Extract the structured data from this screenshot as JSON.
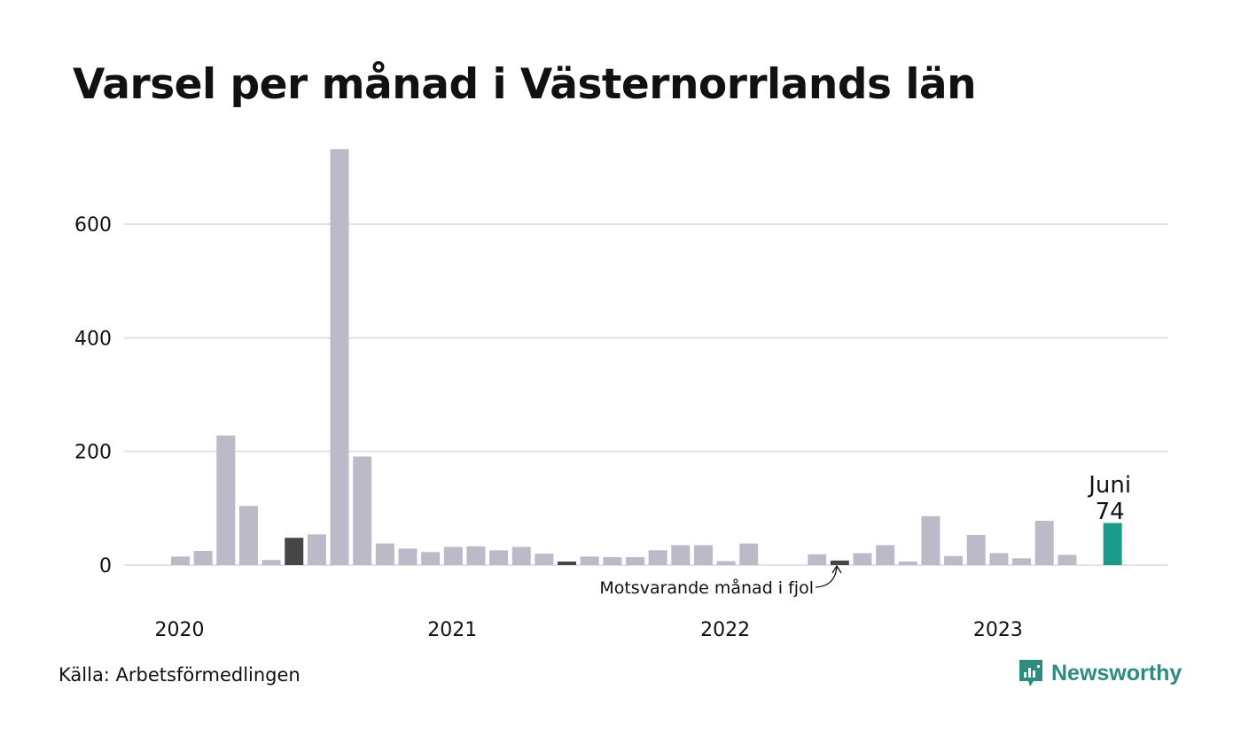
{
  "title": "Varsel per månad i Västernorrlands län",
  "source": "Källa: Arbetsförmedlingen",
  "brand": {
    "name": "Newsworthy",
    "icon": "newsworthy-logo-icon",
    "color": "#2e8b80"
  },
  "colors": {
    "bar": "#bcbac9",
    "same_month_last_year": "#464646",
    "current": "#1a9a8a",
    "grid": "#e2e2e6"
  },
  "annotations": {
    "current_month": "Juni",
    "current_value": "74",
    "last_year": "Motsvarande månad i fjol"
  },
  "chart_data": {
    "type": "bar",
    "title": "Varsel per månad i Västernorrlands län",
    "xlabel": "",
    "ylabel": "",
    "ylim": [
      0,
      740
    ],
    "yticks": [
      0,
      200,
      400,
      600
    ],
    "grid": true,
    "year_labels": [
      "2020",
      "2021",
      "2022",
      "2023"
    ],
    "categories": [
      "2020-01",
      "2020-02",
      "2020-03",
      "2020-04",
      "2020-05",
      "2020-06",
      "2020-07",
      "2020-08",
      "2020-09",
      "2020-10",
      "2020-11",
      "2020-12",
      "2021-01",
      "2021-02",
      "2021-03",
      "2021-04",
      "2021-05",
      "2021-06",
      "2021-07",
      "2021-08",
      "2021-09",
      "2021-10",
      "2021-11",
      "2021-12",
      "2022-01",
      "2022-02",
      "2022-03",
      "2022-04",
      "2022-05",
      "2022-06",
      "2022-07",
      "2022-08",
      "2022-09",
      "2022-10",
      "2022-11",
      "2022-12",
      "2023-01",
      "2023-02",
      "2023-03",
      "2023-04",
      "2023-05",
      "2023-06"
    ],
    "values": [
      15,
      25,
      228,
      104,
      9,
      48,
      54,
      732,
      191,
      38,
      29,
      23,
      32,
      33,
      26,
      32,
      20,
      5,
      15,
      14,
      14,
      26,
      35,
      35,
      7,
      38,
      0,
      0,
      19,
      8,
      21,
      35,
      5,
      86,
      16,
      53,
      21,
      12,
      78,
      18,
      0,
      74
    ],
    "highlight": {
      "same_month_last_year": [
        "2020-06",
        "2021-06",
        "2022-06"
      ],
      "current": "2023-06"
    }
  }
}
